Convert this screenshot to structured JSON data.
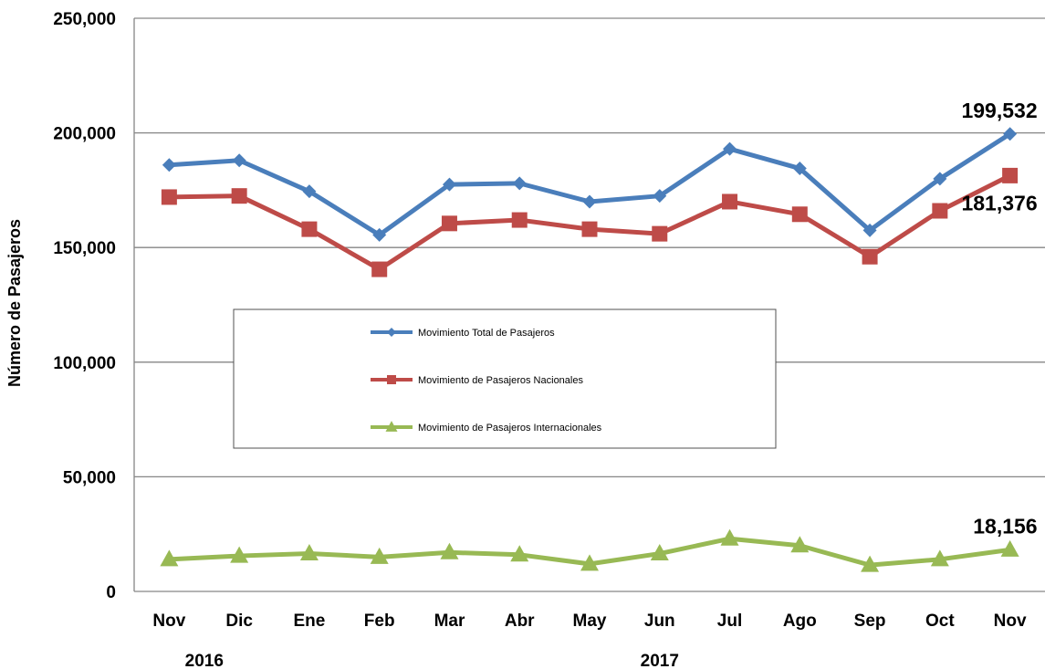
{
  "chart_data": {
    "type": "line",
    "title": "",
    "xlabel": "",
    "ylabel": "Número de Pasajeros",
    "categories": [
      "Nov",
      "Dic",
      "Ene",
      "Feb",
      "Mar",
      "Abr",
      "May",
      "Jun",
      "Jul",
      "Ago",
      "Sep",
      "Oct",
      "Nov"
    ],
    "year_labels": [
      {
        "text": "2016",
        "index": 0.5
      },
      {
        "text": "2017",
        "index": 7
      }
    ],
    "ylim": [
      0,
      250000
    ],
    "yticks": [
      0,
      50000,
      100000,
      150000,
      200000,
      250000
    ],
    "ytick_labels": [
      "0",
      "50,000",
      "100,000",
      "150,000",
      "200,000",
      "250,000"
    ],
    "grid": true,
    "legend_position": "center",
    "series": [
      {
        "name": "Movimiento Total de Pasajeros",
        "color": "#4a7ebb",
        "marker": "diamond",
        "values": [
          186000,
          188000,
          174500,
          155500,
          177500,
          178000,
          170000,
          172500,
          193000,
          184500,
          157500,
          180000,
          199532
        ]
      },
      {
        "name": "Movimiento de Pasajeros Nacionales",
        "color": "#be4b48",
        "marker": "square",
        "values": [
          172000,
          172500,
          158000,
          140500,
          160500,
          162000,
          158000,
          156000,
          170000,
          164500,
          146000,
          166000,
          181376
        ]
      },
      {
        "name": "Movimiento de Pasajeros Internacionales",
        "color": "#98b954",
        "marker": "triangle",
        "values": [
          14000,
          15500,
          16500,
          15000,
          17000,
          16000,
          12000,
          16500,
          23000,
          20000,
          11500,
          14000,
          18156
        ]
      }
    ],
    "annotations": [
      {
        "series": 0,
        "index": 12,
        "text": "199,532",
        "position": "above"
      },
      {
        "series": 1,
        "index": 12,
        "text": "181,376",
        "position": "below"
      },
      {
        "series": 2,
        "index": 12,
        "text": "18,156",
        "position": "above"
      }
    ]
  }
}
